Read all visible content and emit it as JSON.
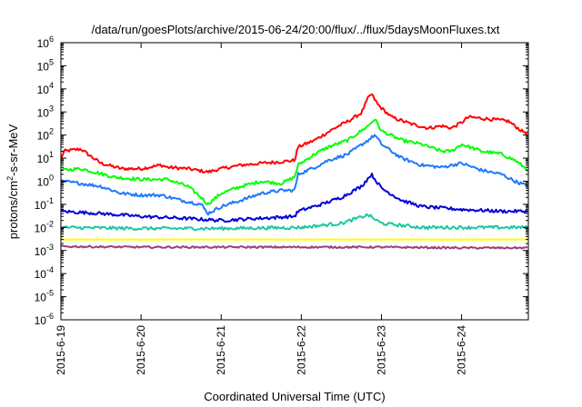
{
  "chart_data": {
    "type": "line",
    "title": "/data/run/goesPlots/archive/2015-06-24/20:00/flux/../flux/5daysMoonFluxes.txt",
    "xlabel": "Coordinated Universal Time (UTC)",
    "ylabel": "protons/cm2-s-sr-MeV",
    "ylabel_parts": [
      "protons/cm",
      "2",
      "-s-sr-MeV"
    ],
    "y_scale": "log",
    "ylim": [
      1e-06,
      1000000.0
    ],
    "xlim": [
      "2015-06-19T00:00",
      "2015-06-24T20:00"
    ],
    "x_ticks": [
      "2015-6-19",
      "2015-6-20",
      "2015-6-21",
      "2015-6-22",
      "2015-6-23",
      "2015-6-24"
    ],
    "y_ticks": [
      {
        "value": 1e-06,
        "base": "10",
        "exp": "-6"
      },
      {
        "value": 1e-05,
        "base": "10",
        "exp": "-5"
      },
      {
        "value": 0.0001,
        "base": "10",
        "exp": "-4"
      },
      {
        "value": 0.001,
        "base": "10",
        "exp": "-3"
      },
      {
        "value": 0.01,
        "base": "10",
        "exp": "-2"
      },
      {
        "value": 0.1,
        "base": "10",
        "exp": "-1"
      },
      {
        "value": 1,
        "base": "10",
        "exp": "0"
      },
      {
        "value": 10.0,
        "base": "10",
        "exp": "1"
      },
      {
        "value": 100.0,
        "base": "10",
        "exp": "2"
      },
      {
        "value": 1000.0,
        "base": "10",
        "exp": "3"
      },
      {
        "value": 10000.0,
        "base": "10",
        "exp": "4"
      },
      {
        "value": 100000.0,
        "base": "10",
        "exp": "5"
      },
      {
        "value": 1000000.0,
        "base": "10",
        "exp": "6"
      }
    ],
    "grid": false,
    "series": [
      {
        "color": "#ff0000",
        "points": [
          [
            "2015-06-19T00:00",
            10
          ],
          [
            "2015-06-19T01:00",
            20
          ],
          [
            "2015-06-19T03:00",
            22
          ],
          [
            "2015-06-19T06:00",
            25
          ],
          [
            "2015-06-19T08:00",
            15
          ],
          [
            "2015-06-19T12:00",
            6
          ],
          [
            "2015-06-19T18:00",
            3.5
          ],
          [
            "2015-06-20T00:00",
            3.5
          ],
          [
            "2015-06-20T06:00",
            5
          ],
          [
            "2015-06-20T08:00",
            4
          ],
          [
            "2015-06-20T14:00",
            3.5
          ],
          [
            "2015-06-20T20:00",
            2.5
          ],
          [
            "2015-06-21T00:00",
            3.5
          ],
          [
            "2015-06-21T06:00",
            5
          ],
          [
            "2015-06-21T12:00",
            6
          ],
          [
            "2015-06-21T18:00",
            7
          ],
          [
            "2015-06-21T22:00",
            8
          ],
          [
            "2015-06-21T23:00",
            30
          ],
          [
            "2015-06-22T04:00",
            60
          ],
          [
            "2015-06-22T10:00",
            200
          ],
          [
            "2015-06-22T14:00",
            400
          ],
          [
            "2015-06-22T18:00",
            900
          ],
          [
            "2015-06-22T20:00",
            4000
          ],
          [
            "2015-06-22T21:00",
            6000
          ],
          [
            "2015-06-22T23:00",
            2000
          ],
          [
            "2015-06-23T03:00",
            600
          ],
          [
            "2015-06-23T09:00",
            300
          ],
          [
            "2015-06-23T14:00",
            200
          ],
          [
            "2015-06-23T18:00",
            250
          ],
          [
            "2015-06-23T21:00",
            200
          ],
          [
            "2015-06-24T00:00",
            350
          ],
          [
            "2015-06-24T02:00",
            600
          ],
          [
            "2015-06-24T08:00",
            500
          ],
          [
            "2015-06-24T14:00",
            400
          ],
          [
            "2015-06-24T18:00",
            150
          ],
          [
            "2015-06-24T20:00",
            120
          ]
        ]
      },
      {
        "color": "#00ff00",
        "points": [
          [
            "2015-06-19T00:00",
            3
          ],
          [
            "2015-06-19T06:00",
            3.5
          ],
          [
            "2015-06-19T10:00",
            2.5
          ],
          [
            "2015-06-19T16:00",
            1.5
          ],
          [
            "2015-06-20T00:00",
            1.2
          ],
          [
            "2015-06-20T08:00",
            1.2
          ],
          [
            "2015-06-20T14:00",
            0.6
          ],
          [
            "2015-06-20T18:00",
            0.2
          ],
          [
            "2015-06-20T20:00",
            0.1
          ],
          [
            "2015-06-21T00:00",
            0.3
          ],
          [
            "2015-06-21T06:00",
            0.6
          ],
          [
            "2015-06-21T12:00",
            1.0
          ],
          [
            "2015-06-21T18:00",
            0.8
          ],
          [
            "2015-06-21T22:00",
            1.5
          ],
          [
            "2015-06-21T23:00",
            5
          ],
          [
            "2015-06-22T04:00",
            15
          ],
          [
            "2015-06-22T08:00",
            30
          ],
          [
            "2015-06-22T14:00",
            60
          ],
          [
            "2015-06-22T20:00",
            250
          ],
          [
            "2015-06-22T22:00",
            500
          ],
          [
            "2015-06-23T00:00",
            150
          ],
          [
            "2015-06-23T06:00",
            60
          ],
          [
            "2015-06-23T12:00",
            40
          ],
          [
            "2015-06-23T18:00",
            20
          ],
          [
            "2015-06-23T21:00",
            20
          ],
          [
            "2015-06-24T00:00",
            40
          ],
          [
            "2015-06-24T06:00",
            20
          ],
          [
            "2015-06-24T12:00",
            15
          ],
          [
            "2015-06-24T16:00",
            8
          ],
          [
            "2015-06-24T20:00",
            3
          ]
        ]
      },
      {
        "color": "#1e78ff",
        "points": [
          [
            "2015-06-19T00:00",
            1.0
          ],
          [
            "2015-06-19T06:00",
            0.8
          ],
          [
            "2015-06-19T12:00",
            0.6
          ],
          [
            "2015-06-19T18:00",
            0.3
          ],
          [
            "2015-06-20T00:00",
            0.25
          ],
          [
            "2015-06-20T06:00",
            0.25
          ],
          [
            "2015-06-20T12:00",
            0.15
          ],
          [
            "2015-06-20T18:00",
            0.1
          ],
          [
            "2015-06-20T20:00",
            0.04
          ],
          [
            "2015-06-21T00:00",
            0.08
          ],
          [
            "2015-06-21T06:00",
            0.15
          ],
          [
            "2015-06-21T12:00",
            0.3
          ],
          [
            "2015-06-21T18:00",
            0.4
          ],
          [
            "2015-06-21T22:00",
            0.4
          ],
          [
            "2015-06-21T23:00",
            2
          ],
          [
            "2015-06-22T04:00",
            4
          ],
          [
            "2015-06-22T08:00",
            8
          ],
          [
            "2015-06-22T14:00",
            15
          ],
          [
            "2015-06-22T20:00",
            60
          ],
          [
            "2015-06-22T22:00",
            100
          ],
          [
            "2015-06-23T00:00",
            40
          ],
          [
            "2015-06-23T06:00",
            10
          ],
          [
            "2015-06-23T12:00",
            5
          ],
          [
            "2015-06-23T18:00",
            4
          ],
          [
            "2015-06-23T21:00",
            5
          ],
          [
            "2015-06-24T00:00",
            6
          ],
          [
            "2015-06-24T06:00",
            3
          ],
          [
            "2015-06-24T12:00",
            2
          ],
          [
            "2015-06-24T16:00",
            1
          ],
          [
            "2015-06-24T20:00",
            0.6
          ]
        ]
      },
      {
        "color": "#0000d8",
        "points": [
          [
            "2015-06-19T00:00",
            0.05
          ],
          [
            "2015-06-19T12:00",
            0.04
          ],
          [
            "2015-06-20T00:00",
            0.03
          ],
          [
            "2015-06-20T12:00",
            0.025
          ],
          [
            "2015-06-21T00:00",
            0.02
          ],
          [
            "2015-06-21T12:00",
            0.025
          ],
          [
            "2015-06-21T22:00",
            0.03
          ],
          [
            "2015-06-21T23:00",
            0.05
          ],
          [
            "2015-06-22T06:00",
            0.1
          ],
          [
            "2015-06-22T12:00",
            0.2
          ],
          [
            "2015-06-22T18:00",
            0.6
          ],
          [
            "2015-06-22T21:00",
            2
          ],
          [
            "2015-06-23T00:00",
            0.5
          ],
          [
            "2015-06-23T06:00",
            0.15
          ],
          [
            "2015-06-23T12:00",
            0.08
          ],
          [
            "2015-06-24T00:00",
            0.06
          ],
          [
            "2015-06-24T12:00",
            0.05
          ],
          [
            "2015-06-24T20:00",
            0.05
          ]
        ]
      },
      {
        "color": "#1cc8a0",
        "points": [
          [
            "2015-06-19T00:00",
            0.01
          ],
          [
            "2015-06-20T00:00",
            0.009
          ],
          [
            "2015-06-21T00:00",
            0.009
          ],
          [
            "2015-06-22T00:00",
            0.01
          ],
          [
            "2015-06-22T12:00",
            0.015
          ],
          [
            "2015-06-22T20:00",
            0.035
          ],
          [
            "2015-06-23T00:00",
            0.015
          ],
          [
            "2015-06-23T12:00",
            0.01
          ],
          [
            "2015-06-24T00:00",
            0.01
          ],
          [
            "2015-06-24T20:00",
            0.01
          ]
        ]
      },
      {
        "color": "#ffff00",
        "points": [
          [
            "2015-06-19T00:00",
            0.003
          ],
          [
            "2015-06-20T00:00",
            0.003
          ],
          [
            "2015-06-21T00:00",
            0.003
          ],
          [
            "2015-06-22T00:00",
            0.003
          ],
          [
            "2015-06-23T00:00",
            0.003
          ],
          [
            "2015-06-24T00:00",
            0.003
          ],
          [
            "2015-06-24T20:00",
            0.003
          ]
        ]
      },
      {
        "color": "#9a3f7a",
        "points": [
          [
            "2015-06-19T00:00",
            0.0015
          ],
          [
            "2015-06-20T00:00",
            0.0014
          ],
          [
            "2015-06-21T00:00",
            0.0014
          ],
          [
            "2015-06-22T00:00",
            0.0014
          ],
          [
            "2015-06-23T00:00",
            0.0014
          ],
          [
            "2015-06-24T00:00",
            0.0013
          ],
          [
            "2015-06-24T20:00",
            0.0013
          ]
        ]
      }
    ]
  }
}
